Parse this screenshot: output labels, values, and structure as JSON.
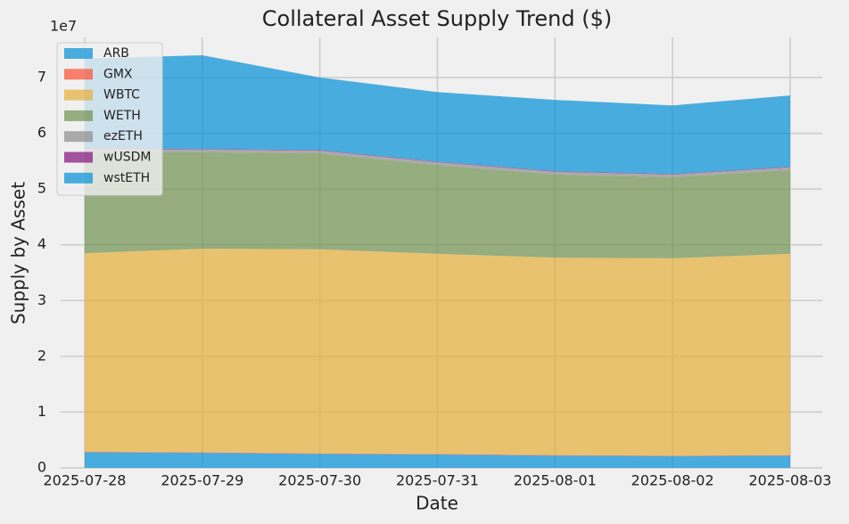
{
  "chart_data": {
    "type": "area",
    "stacked": true,
    "title": "Collateral Asset Supply Trend ($)",
    "x_label": "Date",
    "y_label": "Supply by Asset",
    "y_offset_label": "1e7",
    "categories": [
      "2025-07-28",
      "2025-07-29",
      "2025-07-30",
      "2025-07-31",
      "2025-08-01",
      "2025-08-02",
      "2025-08-03"
    ],
    "series": [
      {
        "name": "ARB",
        "color": "#008fd5",
        "values": [
          0.28,
          0.27,
          0.25,
          0.24,
          0.22,
          0.21,
          0.22
        ]
      },
      {
        "name": "GMX",
        "color": "#fc4f30",
        "values": [
          0.01,
          0.01,
          0.01,
          0.01,
          0.01,
          0.01,
          0.01
        ]
      },
      {
        "name": "WBTC",
        "color": "#e5ae38",
        "values": [
          3.56,
          3.65,
          3.66,
          3.59,
          3.54,
          3.54,
          3.61
        ]
      },
      {
        "name": "WETH",
        "color": "#6d904f",
        "values": [
          1.82,
          1.73,
          1.72,
          1.59,
          1.49,
          1.45,
          1.5
        ]
      },
      {
        "name": "ezETH",
        "color": "#8b8b8b",
        "values": [
          0.05,
          0.05,
          0.05,
          0.05,
          0.05,
          0.05,
          0.05
        ]
      },
      {
        "name": "wUSDM",
        "color": "#810f7c",
        "values": [
          0.01,
          0.01,
          0.01,
          0.01,
          0.01,
          0.01,
          0.01
        ]
      },
      {
        "name": "wstETH",
        "color": "#008fd5",
        "values": [
          1.61,
          1.68,
          1.3,
          1.25,
          1.28,
          1.23,
          1.28
        ]
      }
    ],
    "ylim": [
      0,
      7.72
    ],
    "yticks": [
      0,
      1,
      2,
      3,
      4,
      5,
      6,
      7
    ],
    "grid": true,
    "legend": "upper-left"
  }
}
